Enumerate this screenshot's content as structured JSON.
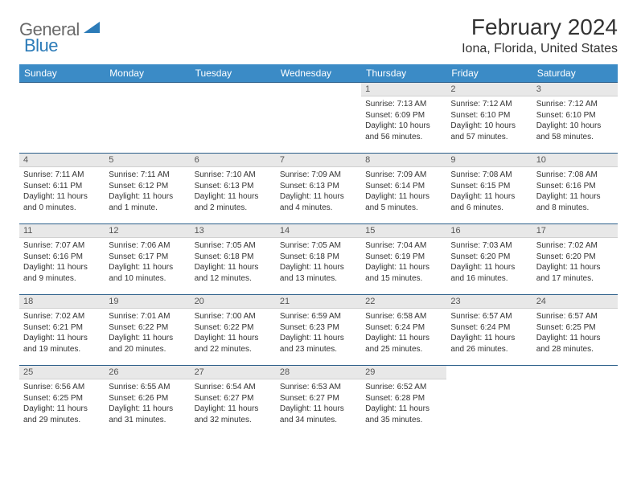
{
  "logo": {
    "textA": "General",
    "textB": "Blue"
  },
  "title": "February 2024",
  "location": "Iona, Florida, United States",
  "colors": {
    "header_bg": "#3b8bc6",
    "header_text": "#ffffff",
    "cell_border": "#2c5f8a",
    "daynum_bg": "#e8e8e8",
    "logo_gray": "#6a6a6a",
    "logo_blue": "#2c7bb8"
  },
  "weekdays": [
    "Sunday",
    "Monday",
    "Tuesday",
    "Wednesday",
    "Thursday",
    "Friday",
    "Saturday"
  ],
  "weeks": [
    [
      null,
      null,
      null,
      null,
      {
        "n": "1",
        "sr": "Sunrise: 7:13 AM",
        "ss": "Sunset: 6:09 PM",
        "dl1": "Daylight: 10 hours",
        "dl2": "and 56 minutes."
      },
      {
        "n": "2",
        "sr": "Sunrise: 7:12 AM",
        "ss": "Sunset: 6:10 PM",
        "dl1": "Daylight: 10 hours",
        "dl2": "and 57 minutes."
      },
      {
        "n": "3",
        "sr": "Sunrise: 7:12 AM",
        "ss": "Sunset: 6:10 PM",
        "dl1": "Daylight: 10 hours",
        "dl2": "and 58 minutes."
      }
    ],
    [
      {
        "n": "4",
        "sr": "Sunrise: 7:11 AM",
        "ss": "Sunset: 6:11 PM",
        "dl1": "Daylight: 11 hours",
        "dl2": "and 0 minutes."
      },
      {
        "n": "5",
        "sr": "Sunrise: 7:11 AM",
        "ss": "Sunset: 6:12 PM",
        "dl1": "Daylight: 11 hours",
        "dl2": "and 1 minute."
      },
      {
        "n": "6",
        "sr": "Sunrise: 7:10 AM",
        "ss": "Sunset: 6:13 PM",
        "dl1": "Daylight: 11 hours",
        "dl2": "and 2 minutes."
      },
      {
        "n": "7",
        "sr": "Sunrise: 7:09 AM",
        "ss": "Sunset: 6:13 PM",
        "dl1": "Daylight: 11 hours",
        "dl2": "and 4 minutes."
      },
      {
        "n": "8",
        "sr": "Sunrise: 7:09 AM",
        "ss": "Sunset: 6:14 PM",
        "dl1": "Daylight: 11 hours",
        "dl2": "and 5 minutes."
      },
      {
        "n": "9",
        "sr": "Sunrise: 7:08 AM",
        "ss": "Sunset: 6:15 PM",
        "dl1": "Daylight: 11 hours",
        "dl2": "and 6 minutes."
      },
      {
        "n": "10",
        "sr": "Sunrise: 7:08 AM",
        "ss": "Sunset: 6:16 PM",
        "dl1": "Daylight: 11 hours",
        "dl2": "and 8 minutes."
      }
    ],
    [
      {
        "n": "11",
        "sr": "Sunrise: 7:07 AM",
        "ss": "Sunset: 6:16 PM",
        "dl1": "Daylight: 11 hours",
        "dl2": "and 9 minutes."
      },
      {
        "n": "12",
        "sr": "Sunrise: 7:06 AM",
        "ss": "Sunset: 6:17 PM",
        "dl1": "Daylight: 11 hours",
        "dl2": "and 10 minutes."
      },
      {
        "n": "13",
        "sr": "Sunrise: 7:05 AM",
        "ss": "Sunset: 6:18 PM",
        "dl1": "Daylight: 11 hours",
        "dl2": "and 12 minutes."
      },
      {
        "n": "14",
        "sr": "Sunrise: 7:05 AM",
        "ss": "Sunset: 6:18 PM",
        "dl1": "Daylight: 11 hours",
        "dl2": "and 13 minutes."
      },
      {
        "n": "15",
        "sr": "Sunrise: 7:04 AM",
        "ss": "Sunset: 6:19 PM",
        "dl1": "Daylight: 11 hours",
        "dl2": "and 15 minutes."
      },
      {
        "n": "16",
        "sr": "Sunrise: 7:03 AM",
        "ss": "Sunset: 6:20 PM",
        "dl1": "Daylight: 11 hours",
        "dl2": "and 16 minutes."
      },
      {
        "n": "17",
        "sr": "Sunrise: 7:02 AM",
        "ss": "Sunset: 6:20 PM",
        "dl1": "Daylight: 11 hours",
        "dl2": "and 17 minutes."
      }
    ],
    [
      {
        "n": "18",
        "sr": "Sunrise: 7:02 AM",
        "ss": "Sunset: 6:21 PM",
        "dl1": "Daylight: 11 hours",
        "dl2": "and 19 minutes."
      },
      {
        "n": "19",
        "sr": "Sunrise: 7:01 AM",
        "ss": "Sunset: 6:22 PM",
        "dl1": "Daylight: 11 hours",
        "dl2": "and 20 minutes."
      },
      {
        "n": "20",
        "sr": "Sunrise: 7:00 AM",
        "ss": "Sunset: 6:22 PM",
        "dl1": "Daylight: 11 hours",
        "dl2": "and 22 minutes."
      },
      {
        "n": "21",
        "sr": "Sunrise: 6:59 AM",
        "ss": "Sunset: 6:23 PM",
        "dl1": "Daylight: 11 hours",
        "dl2": "and 23 minutes."
      },
      {
        "n": "22",
        "sr": "Sunrise: 6:58 AM",
        "ss": "Sunset: 6:24 PM",
        "dl1": "Daylight: 11 hours",
        "dl2": "and 25 minutes."
      },
      {
        "n": "23",
        "sr": "Sunrise: 6:57 AM",
        "ss": "Sunset: 6:24 PM",
        "dl1": "Daylight: 11 hours",
        "dl2": "and 26 minutes."
      },
      {
        "n": "24",
        "sr": "Sunrise: 6:57 AM",
        "ss": "Sunset: 6:25 PM",
        "dl1": "Daylight: 11 hours",
        "dl2": "and 28 minutes."
      }
    ],
    [
      {
        "n": "25",
        "sr": "Sunrise: 6:56 AM",
        "ss": "Sunset: 6:25 PM",
        "dl1": "Daylight: 11 hours",
        "dl2": "and 29 minutes."
      },
      {
        "n": "26",
        "sr": "Sunrise: 6:55 AM",
        "ss": "Sunset: 6:26 PM",
        "dl1": "Daylight: 11 hours",
        "dl2": "and 31 minutes."
      },
      {
        "n": "27",
        "sr": "Sunrise: 6:54 AM",
        "ss": "Sunset: 6:27 PM",
        "dl1": "Daylight: 11 hours",
        "dl2": "and 32 minutes."
      },
      {
        "n": "28",
        "sr": "Sunrise: 6:53 AM",
        "ss": "Sunset: 6:27 PM",
        "dl1": "Daylight: 11 hours",
        "dl2": "and 34 minutes."
      },
      {
        "n": "29",
        "sr": "Sunrise: 6:52 AM",
        "ss": "Sunset: 6:28 PM",
        "dl1": "Daylight: 11 hours",
        "dl2": "and 35 minutes."
      },
      null,
      null
    ]
  ]
}
